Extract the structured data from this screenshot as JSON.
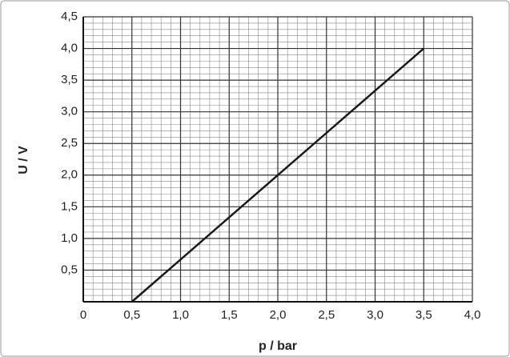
{
  "chart_data": {
    "type": "line",
    "x_label": "p / bar",
    "y_label": "U / V",
    "x": [
      0.5,
      3.5
    ],
    "series": [
      {
        "color": "#1a1a1a",
        "values": [
          0,
          4.0
        ]
      }
    ],
    "xlim": [
      0,
      4.0
    ],
    "xticks": [
      0,
      {
        "value": 0.5,
        "label": "0,5"
      },
      {
        "value": 1.0,
        "label": "1,0"
      },
      {
        "value": 1.5,
        "label": "1,5"
      },
      {
        "value": 2.0,
        "label": "2,0"
      },
      {
        "value": 2.5,
        "label": "2,5"
      },
      {
        "value": 3.0,
        "label": "3,0"
      },
      {
        "value": 3.5,
        "label": "3,5"
      },
      {
        "value": 4.0,
        "label": "4,0"
      }
    ],
    "ylim": [
      0,
      4.5
    ],
    "yticks": [
      {
        "value": 0.5,
        "label": "0,5"
      },
      {
        "value": 1.0,
        "label": "1,0"
      },
      {
        "value": 1.5,
        "label": "1,5"
      },
      {
        "value": 2.0,
        "label": "2,0"
      },
      {
        "value": 2.5,
        "label": "2,5"
      },
      {
        "value": 3.0,
        "label": "3,0"
      },
      {
        "value": 3.5,
        "label": "3,5"
      },
      {
        "value": 4.0,
        "label": "4,0"
      },
      {
        "value": 4.5,
        "label": "4,5"
      }
    ],
    "grid": true,
    "minor_grid": true
  }
}
